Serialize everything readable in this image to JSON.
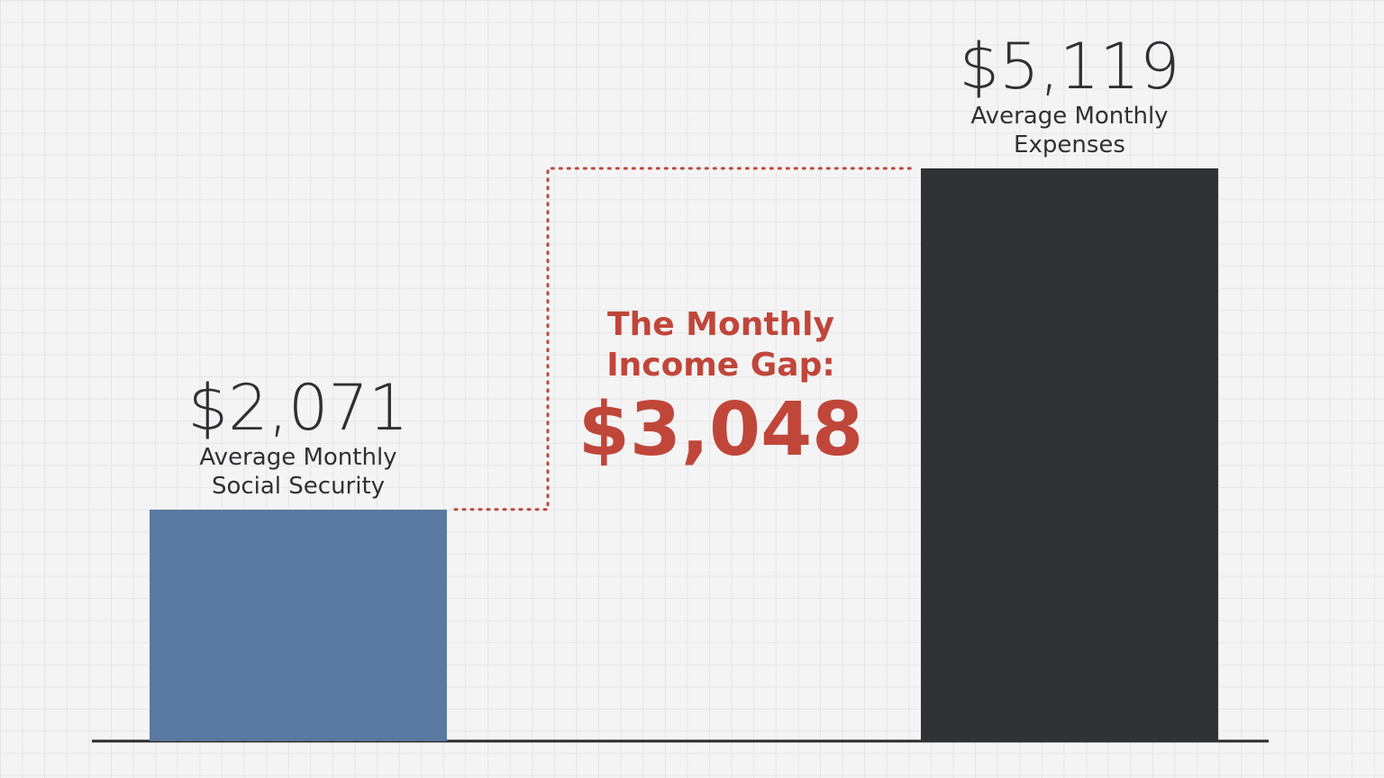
{
  "chart_data": {
    "type": "bar",
    "categories": [
      "Average Monthly Social Security",
      "Average Monthly Expenses"
    ],
    "values": [
      2071,
      5119
    ],
    "value_labels": [
      "$2,071",
      "$5,119"
    ],
    "colors": [
      "#5a79a1",
      "#313235"
    ],
    "annotation": {
      "text": "The Monthly Income Gap:",
      "value": 3048,
      "label": "$3,048",
      "color": "#c0463a"
    }
  }
}
